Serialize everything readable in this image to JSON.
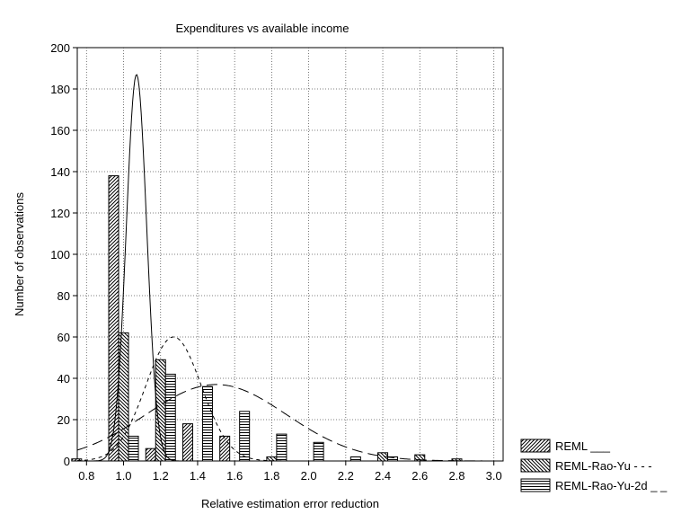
{
  "chart_data": {
    "type": "bar",
    "title": "Expenditures vs available income",
    "xlabel": "Relative estimation error reduction",
    "ylabel": "Number of observations",
    "xlim": [
      0.75,
      3.05
    ],
    "ylim": [
      0,
      200
    ],
    "xticks": [
      "0.8",
      "1.0",
      "1.2",
      "1.4",
      "1.6",
      "1.8",
      "2.0",
      "2.2",
      "2.4",
      "2.6",
      "2.8",
      "3.0"
    ],
    "yticks": [
      "0",
      "20",
      "40",
      "60",
      "80",
      "100",
      "120",
      "140",
      "160",
      "180",
      "200"
    ],
    "grid": true,
    "legend_position": "bottom-right",
    "bin_centers": [
      0.8,
      1.0,
      1.2,
      1.4,
      1.6,
      1.8,
      2.0,
      2.2,
      2.4,
      2.6,
      2.8,
      3.0
    ],
    "series": [
      {
        "name": "REML ___",
        "pattern": "hatch-diag-down",
        "values": [
          1,
          138,
          6,
          18,
          12,
          0,
          0,
          0,
          0,
          0,
          0,
          0
        ],
        "fit_curve": {
          "style": "solid",
          "mean": 1.07,
          "sd": 0.055,
          "peak": 187
        }
      },
      {
        "name": "REML-Rao-Yu - - -",
        "pattern": "hatch-diag-up",
        "values": [
          0,
          62,
          49,
          0,
          0,
          2,
          0,
          0,
          4,
          3,
          1,
          0
        ],
        "fit_curve": {
          "style": "dashed",
          "mean": 1.27,
          "sd": 0.15,
          "peak": 60
        }
      },
      {
        "name": "REML-Rao-Yu-2d _ _",
        "pattern": "hatch-horizontal",
        "values": [
          0,
          12,
          42,
          36,
          24,
          13,
          9,
          2,
          2,
          0,
          0,
          0
        ],
        "fit_curve": {
          "style": "longdash",
          "mean": 1.5,
          "sd": 0.38,
          "peak": 37
        }
      }
    ]
  }
}
